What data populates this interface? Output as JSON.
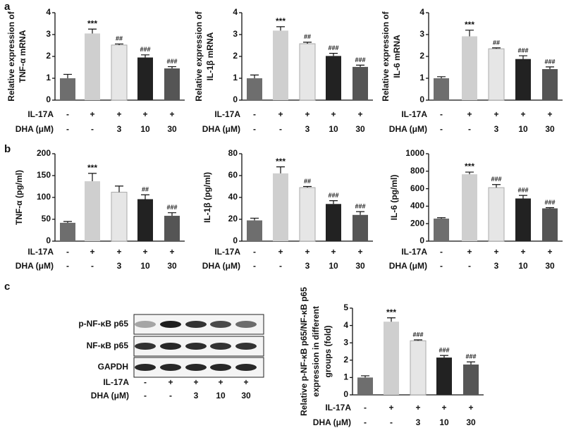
{
  "panel_labels": [
    "a",
    "b",
    "c"
  ],
  "blot": {
    "rows": [
      "p-NF-κB p65",
      "NF-κB p65",
      "GAPDH"
    ],
    "treatments": [
      {
        "name": "IL-17A",
        "labels": [
          "-",
          "+",
          "+",
          "+",
          "+"
        ]
      },
      {
        "name": "DHA (μM)",
        "labels": [
          "-",
          "-",
          "3",
          "10",
          "30"
        ]
      }
    ]
  },
  "chart_data": [
    {
      "type": "bar",
      "y_label": [
        "Relative expression of",
        "TNF-α mRNA"
      ],
      "treatments": [
        {
          "name": "IL-17A",
          "labels": [
            "-",
            "+",
            "+",
            "+",
            "+"
          ]
        },
        {
          "name": "DHA (μM)",
          "labels": [
            "-",
            "-",
            "3",
            "10",
            "30"
          ]
        }
      ],
      "values": [
        1.0,
        3.05,
        2.52,
        1.95,
        1.45
      ],
      "errors": [
        0.18,
        0.2,
        0.05,
        0.12,
        0.08
      ],
      "value_annotations": [
        null,
        "***",
        "##",
        "###",
        "###"
      ],
      "colors": [
        "#6e6e6e",
        "#cfcfcf",
        "#e6e6e6",
        "#222222",
        "#555555"
      ],
      "ylim": [
        0,
        4
      ],
      "yticks": [
        0,
        1,
        2,
        3,
        4
      ]
    },
    {
      "type": "bar",
      "y_label": [
        "Relative expression of",
        "IL-1β mRNA"
      ],
      "treatments": [
        {
          "name": "IL-17A",
          "labels": [
            "-",
            "+",
            "+",
            "+",
            "+"
          ]
        },
        {
          "name": "DHA (μM)",
          "labels": [
            "-",
            "-",
            "3",
            "10",
            "30"
          ]
        }
      ],
      "values": [
        1.0,
        3.18,
        2.58,
        2.02,
        1.52
      ],
      "errors": [
        0.15,
        0.18,
        0.07,
        0.12,
        0.08
      ],
      "value_annotations": [
        null,
        "***",
        "##",
        "###",
        "###"
      ],
      "colors": [
        "#6e6e6e",
        "#cfcfcf",
        "#e6e6e6",
        "#222222",
        "#555555"
      ],
      "ylim": [
        0,
        4
      ],
      "yticks": [
        0,
        1,
        2,
        3,
        4
      ]
    },
    {
      "type": "bar",
      "y_label": [
        "Relative expression of",
        "IL-6 mRNA"
      ],
      "treatments": [
        {
          "name": "IL-17A",
          "labels": [
            "-",
            "+",
            "+",
            "+",
            "+"
          ]
        },
        {
          "name": "DHA (μM)",
          "labels": [
            "-",
            "-",
            "3",
            "10",
            "30"
          ]
        }
      ],
      "values": [
        1.0,
        2.92,
        2.35,
        1.88,
        1.42
      ],
      "errors": [
        0.07,
        0.28,
        0.04,
        0.15,
        0.1
      ],
      "value_annotations": [
        null,
        "***",
        "##",
        "###",
        "###"
      ],
      "colors": [
        "#6e6e6e",
        "#cfcfcf",
        "#e6e6e6",
        "#222222",
        "#555555"
      ],
      "ylim": [
        0,
        4
      ],
      "yticks": [
        0,
        1,
        2,
        3,
        4
      ]
    },
    {
      "type": "bar",
      "y_label": [
        "TNF-α (pg/ml)"
      ],
      "treatments": [
        {
          "name": "IL-17A",
          "labels": [
            "-",
            "+",
            "+",
            "+",
            "+"
          ]
        },
        {
          "name": "DHA (μM)",
          "labels": [
            "-",
            "-",
            "3",
            "10",
            "30"
          ]
        }
      ],
      "values": [
        42,
        137,
        112,
        96,
        58
      ],
      "errors": [
        3,
        18,
        14,
        10,
        7
      ],
      "value_annotations": [
        null,
        "***",
        null,
        "##",
        "###"
      ],
      "colors": [
        "#6e6e6e",
        "#cfcfcf",
        "#e6e6e6",
        "#222222",
        "#555555"
      ],
      "ylim": [
        0,
        200
      ],
      "yticks": [
        0,
        50,
        100,
        150,
        200
      ]
    },
    {
      "type": "bar",
      "y_label": [
        "IL-1β (pg/ml)"
      ],
      "treatments": [
        {
          "name": "IL-17A",
          "labels": [
            "-",
            "+",
            "+",
            "+",
            "+"
          ]
        },
        {
          "name": "DHA (μM)",
          "labels": [
            "-",
            "-",
            "3",
            "10",
            "30"
          ]
        }
      ],
      "values": [
        19,
        62,
        49,
        34,
        24
      ],
      "errors": [
        2,
        6,
        1,
        3,
        3
      ],
      "value_annotations": [
        null,
        "***",
        "##",
        "###",
        "###"
      ],
      "colors": [
        "#6e6e6e",
        "#cfcfcf",
        "#e6e6e6",
        "#222222",
        "#555555"
      ],
      "ylim": [
        0,
        80
      ],
      "yticks": [
        0,
        20,
        40,
        60,
        80
      ]
    },
    {
      "type": "bar",
      "y_label": [
        "IL-6 (pg/ml)"
      ],
      "treatments": [
        {
          "name": "IL-17A",
          "labels": [
            "-",
            "+",
            "+",
            "+",
            "+"
          ]
        },
        {
          "name": "DHA (μM)",
          "labels": [
            "-",
            "-",
            "3",
            "10",
            "30"
          ]
        }
      ],
      "values": [
        258,
        765,
        612,
        488,
        375
      ],
      "errors": [
        10,
        25,
        35,
        35,
        8
      ],
      "value_annotations": [
        null,
        "***",
        "###",
        "###",
        "###"
      ],
      "colors": [
        "#6e6e6e",
        "#cfcfcf",
        "#e6e6e6",
        "#222222",
        "#555555"
      ],
      "ylim": [
        0,
        1000
      ],
      "yticks": [
        0,
        200,
        400,
        600,
        800,
        1000
      ]
    },
    {
      "type": "bar",
      "y_label": [
        "Relative p-NF-κB p65/NF-κB p65",
        "expression in different",
        "groups (fold)"
      ],
      "treatments": [
        {
          "name": "IL-17A",
          "labels": [
            "-",
            "+",
            "+",
            "+",
            "+"
          ]
        },
        {
          "name": "DHA (μM)",
          "labels": [
            "-",
            "-",
            "3",
            "10",
            "30"
          ]
        }
      ],
      "values": [
        1.0,
        4.22,
        3.12,
        2.15,
        1.75
      ],
      "errors": [
        0.1,
        0.22,
        0.05,
        0.12,
        0.15
      ],
      "value_annotations": [
        null,
        "***",
        "###",
        "###",
        "###"
      ],
      "colors": [
        "#6e6e6e",
        "#cfcfcf",
        "#e6e6e6",
        "#222222",
        "#555555"
      ],
      "ylim": [
        0,
        5
      ],
      "yticks": [
        0,
        1,
        2,
        3,
        4,
        5
      ]
    }
  ]
}
